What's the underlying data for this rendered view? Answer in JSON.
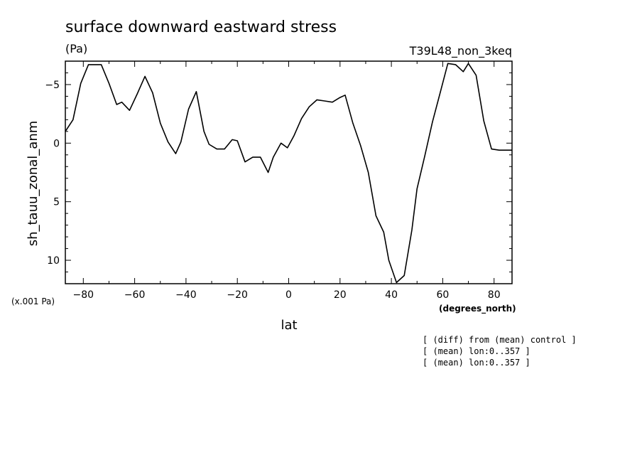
{
  "chart_data": {
    "type": "line",
    "title": "surface downward eastward stress",
    "units": "(Pa)",
    "run_label": "T39L48_non_3keq",
    "xlabel": "lat",
    "x_units": "(degrees_north)",
    "ylabel": "sh_tauu_zonal_anm",
    "y_scale_note": "(x.001 Pa)",
    "notes": [
      "[ (diff) from (mean) control ]",
      "[ (mean) lon:0..357 ]",
      "[ (mean) lon:0..357 ]"
    ],
    "xlim": [
      -87,
      87
    ],
    "ylim": [
      12,
      -7
    ],
    "y_inverted": true,
    "grid": false,
    "x_ticks": [
      -80,
      -60,
      -40,
      -20,
      0,
      20,
      40,
      60,
      80
    ],
    "y_ticks": [
      -5,
      0,
      5,
      10
    ],
    "series": [
      {
        "x": [
          -87,
          -84,
          -81,
          -78,
          -75,
          -73,
          -70,
          -67,
          -65,
          -62,
          -59,
          -56,
          -53,
          -50,
          -47,
          -44,
          -42,
          -39,
          -36,
          -33,
          -31,
          -28,
          -25,
          -22,
          -20,
          -17,
          -14,
          -11,
          -8,
          -6,
          -3,
          -0.5,
          2,
          5,
          8,
          11,
          14,
          17,
          20,
          22,
          25,
          28,
          31,
          34,
          37,
          39,
          42,
          45,
          48,
          50,
          53,
          56,
          59,
          62,
          65,
          68,
          70,
          73,
          76,
          79,
          82,
          84,
          87
        ],
        "y": [
          -1,
          -2,
          -5.1,
          -6.7,
          -6.7,
          -6.7,
          -5.1,
          -3.3,
          -3.5,
          -2.8,
          -4.2,
          -5.7,
          -4.3,
          -1.7,
          -0.1,
          0.9,
          -0.1,
          -2.9,
          -4.4,
          -1,
          0.1,
          0.5,
          0.5,
          -0.3,
          -0.2,
          1.6,
          1.2,
          1.2,
          2.5,
          1.2,
          0,
          0.4,
          -0.6,
          -2.1,
          -3.1,
          -3.7,
          -3.6,
          -3.5,
          -3.9,
          -4.1,
          -1.7,
          0.2,
          2.5,
          6.2,
          7.6,
          10,
          11.9,
          11.3,
          7.4,
          3.9,
          1.1,
          -1.8,
          -4.3,
          -6.8,
          -6.7,
          -6.1,
          -6.8,
          -5.8,
          -1.9,
          0.5,
          0.6,
          0.6,
          0.6
        ]
      }
    ]
  }
}
